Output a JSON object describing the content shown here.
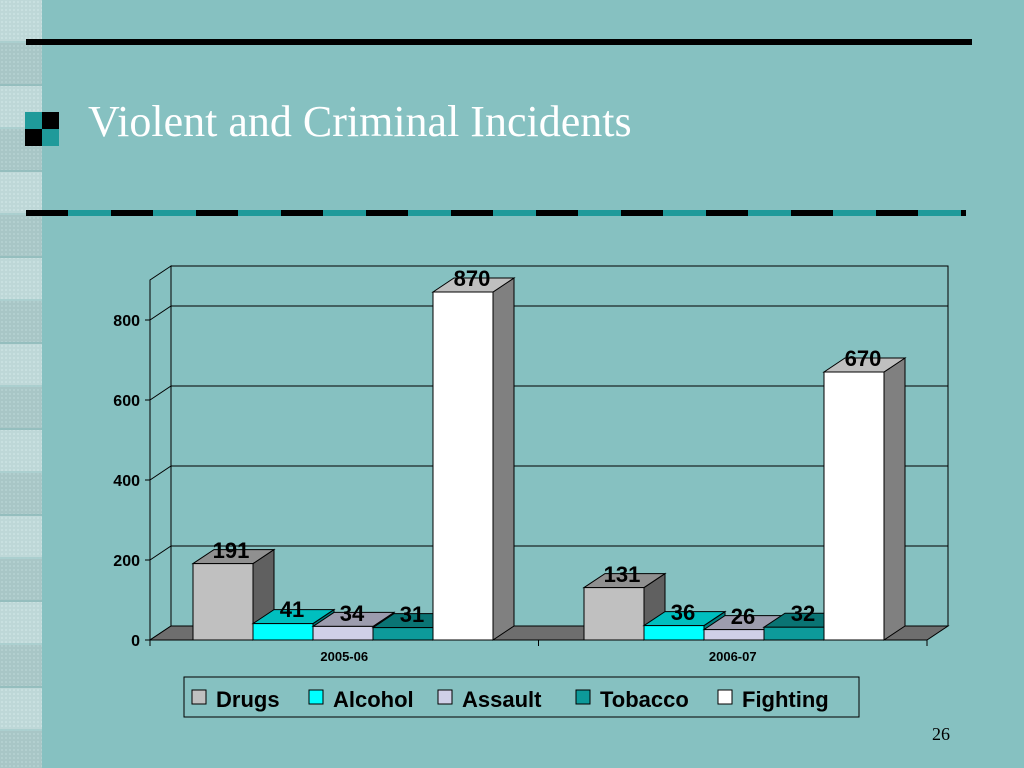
{
  "title": "Violent and Criminal Incidents",
  "page_number": "26",
  "colors": {
    "background": "#86c1c1",
    "Drugs": "#c0c0c0",
    "Alcohol": "#00ffff",
    "Assault": "#d0d0e8",
    "Tobacco": "#0d9a9a",
    "Fighting": "#ffffff"
  },
  "chart_data": {
    "type": "bar",
    "style": "3d-clustered-column",
    "categories": [
      "2005-06",
      "2006-07"
    ],
    "series": [
      {
        "name": "Drugs",
        "values": [
          191,
          131
        ]
      },
      {
        "name": "Alcohol",
        "values": [
          41,
          36
        ]
      },
      {
        "name": "Assault",
        "values": [
          34,
          26
        ]
      },
      {
        "name": "Tobacco",
        "values": [
          31,
          32
        ]
      },
      {
        "name": "Fighting",
        "values": [
          870,
          670
        ]
      }
    ],
    "yticks": [
      0,
      200,
      400,
      600,
      800
    ],
    "ylim": [
      0,
      900
    ],
    "grid": true,
    "legend": "bottom",
    "title": "",
    "xlabel": "",
    "ylabel": ""
  }
}
